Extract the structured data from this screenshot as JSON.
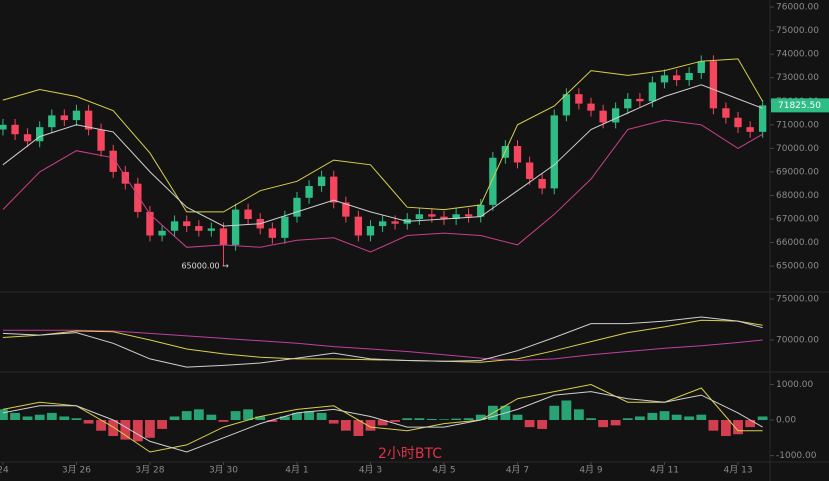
{
  "chart_data": [
    {
      "type": "candlestick",
      "xlim": [
        -0.08,
        20.87
      ],
      "ylim": [
        63900,
        76300
      ],
      "yticks": [
        {
          "value": 65000,
          "label": "65000.00"
        },
        {
          "value": 66000,
          "label": "66000.00"
        },
        {
          "value": 67000,
          "label": "67000.00"
        },
        {
          "value": 68000,
          "label": "68000.00"
        },
        {
          "value": 69000,
          "label": "69000.00"
        },
        {
          "value": 70000,
          "label": "70000.00"
        },
        {
          "value": 71000,
          "label": "71000.00"
        },
        {
          "value": 72000,
          "label": "72000.00"
        },
        {
          "value": 73000,
          "label": "73000.00"
        },
        {
          "value": 74000,
          "label": "74000.00"
        },
        {
          "value": 75000,
          "label": "75000.00"
        },
        {
          "value": 76000,
          "label": "76000.00"
        }
      ],
      "colors": {
        "up": "#2ebd85",
        "down": "#f6465d"
      },
      "x": [
        0,
        0.33,
        0.67,
        1,
        1.33,
        1.67,
        2,
        2.33,
        2.67,
        3,
        3.33,
        3.67,
        4,
        4.33,
        4.67,
        5,
        5.33,
        5.67,
        6,
        6.33,
        6.67,
        7,
        7.33,
        7.67,
        8,
        8.33,
        8.67,
        9,
        9.33,
        9.67,
        10,
        10.33,
        10.67,
        11,
        11.33,
        11.67,
        12,
        12.33,
        12.67,
        13,
        13.33,
        13.67,
        14,
        14.33,
        14.67,
        15,
        15.33,
        15.67,
        16,
        16.33,
        16.67,
        17,
        17.33,
        17.67,
        18,
        18.33,
        18.67,
        19,
        19.33,
        19.67,
        20,
        20.33,
        20.67
      ],
      "ohlc": [
        [
          70800,
          71250,
          70550,
          71000
        ],
        [
          71000,
          71250,
          70350,
          70600
        ],
        [
          70600,
          70850,
          70050,
          70300
        ],
        [
          70300,
          71150,
          70050,
          70900
        ],
        [
          70900,
          71650,
          70650,
          71400
        ],
        [
          71400,
          71650,
          70950,
          71200
        ],
        [
          71200,
          71850,
          70950,
          71600
        ],
        [
          71600,
          71850,
          70550,
          70800
        ],
        [
          70800,
          71050,
          69650,
          69900
        ],
        [
          69900,
          70150,
          68750,
          69000
        ],
        [
          69000,
          69250,
          68250,
          68500
        ],
        [
          68500,
          68750,
          67050,
          67300
        ],
        [
          67300,
          67550,
          66050,
          66300
        ],
        [
          66300,
          66750,
          66050,
          66500
        ],
        [
          66500,
          67150,
          66250,
          66900
        ],
        [
          66900,
          67150,
          66450,
          66700
        ],
        [
          66700,
          66950,
          66250,
          66500
        ],
        [
          66500,
          66850,
          66250,
          66600
        ],
        [
          66600,
          66850,
          65000,
          65900
        ],
        [
          65900,
          67650,
          65650,
          67400
        ],
        [
          67400,
          67650,
          66750,
          67000
        ],
        [
          67000,
          67250,
          66350,
          66600
        ],
        [
          66600,
          66850,
          65950,
          66200
        ],
        [
          66200,
          67350,
          65950,
          67100
        ],
        [
          67100,
          68150,
          66850,
          67900
        ],
        [
          67900,
          68650,
          67650,
          68400
        ],
        [
          68400,
          69050,
          68150,
          68800
        ],
        [
          68800,
          69050,
          67450,
          67700
        ],
        [
          67700,
          67950,
          66850,
          67100
        ],
        [
          67100,
          67350,
          66050,
          66300
        ],
        [
          66300,
          66950,
          66050,
          66700
        ],
        [
          66700,
          67150,
          66450,
          66900
        ],
        [
          66900,
          67150,
          66550,
          66800
        ],
        [
          66800,
          67250,
          66550,
          67000
        ],
        [
          67000,
          67450,
          66750,
          67200
        ],
        [
          67200,
          67450,
          66850,
          67100
        ],
        [
          67100,
          67350,
          66750,
          67000
        ],
        [
          67000,
          67450,
          66750,
          67200
        ],
        [
          67200,
          67450,
          66850,
          67100
        ],
        [
          67100,
          67850,
          66850,
          67600
        ],
        [
          67600,
          69850,
          67350,
          69600
        ],
        [
          69600,
          70350,
          69350,
          70100
        ],
        [
          70100,
          70350,
          69150,
          69400
        ],
        [
          69400,
          69650,
          68450,
          68700
        ],
        [
          68700,
          68950,
          68050,
          68300
        ],
        [
          68300,
          71650,
          68050,
          71400
        ],
        [
          71400,
          72550,
          71150,
          72300
        ],
        [
          72300,
          72550,
          71650,
          71900
        ],
        [
          71900,
          72150,
          71350,
          71600
        ],
        [
          71600,
          71850,
          70850,
          71100
        ],
        [
          71100,
          71950,
          70850,
          71700
        ],
        [
          71700,
          72350,
          71450,
          72100
        ],
        [
          72100,
          72350,
          71750,
          72000
        ],
        [
          72000,
          73050,
          71750,
          72800
        ],
        [
          72800,
          73350,
          72550,
          73100
        ],
        [
          73100,
          73350,
          72650,
          72900
        ],
        [
          72900,
          73450,
          72650,
          73200
        ],
        [
          73200,
          73950,
          72950,
          73700
        ],
        [
          73700,
          73950,
          71450,
          71700
        ],
        [
          71700,
          71950,
          71050,
          71300
        ],
        [
          71300,
          71550,
          70650,
          70900
        ],
        [
          70900,
          71150,
          70450,
          70700
        ],
        [
          70700,
          72050,
          70450,
          71825.5
        ]
      ],
      "series": [
        {
          "color": "#d8d04a",
          "x": [
            0,
            1,
            2,
            3,
            4,
            5,
            6,
            7,
            8,
            9,
            10,
            11,
            12,
            13,
            14,
            15,
            16,
            17,
            18,
            19,
            20,
            20.67
          ],
          "values": [
            72050,
            72500,
            72200,
            71600,
            69800,
            67300,
            67300,
            68200,
            68600,
            69500,
            69300,
            67500,
            67400,
            67600,
            71000,
            71800,
            73300,
            73100,
            73300,
            73700,
            73800,
            72000
          ]
        },
        {
          "color": "#cfcfcf",
          "x": [
            0,
            1,
            2,
            3,
            4,
            5,
            6,
            7,
            8,
            9,
            10,
            11,
            12,
            13,
            14,
            15,
            16,
            17,
            18,
            19,
            20,
            20.67
          ],
          "values": [
            69300,
            70500,
            71000,
            70700,
            69000,
            67500,
            66700,
            66800,
            67300,
            67800,
            67300,
            66900,
            67000,
            67100,
            68200,
            69300,
            70800,
            71500,
            72200,
            72700,
            72100,
            71700
          ]
        },
        {
          "color": "#c8408a",
          "x": [
            0,
            1,
            2,
            3,
            4,
            5,
            6,
            7,
            8,
            9,
            10,
            11,
            12,
            13,
            14,
            15,
            16,
            17,
            18,
            19,
            20,
            20.67
          ],
          "values": [
            67400,
            69000,
            69900,
            69600,
            67200,
            65800,
            65900,
            65800,
            66100,
            66200,
            65600,
            66300,
            66400,
            66300,
            65900,
            67200,
            68700,
            70800,
            71200,
            71000,
            70000,
            70600
          ]
        }
      ],
      "current_price": 71825.5,
      "current_price_label": "71825.50",
      "annotations": [
        {
          "text": "65000.00 →",
          "value": 65000,
          "x": 6
        }
      ]
    },
    {
      "type": "line",
      "xlim": [
        -0.08,
        20.87
      ],
      "ylim": [
        66100,
        75850
      ],
      "yticks": [
        {
          "value": 70000,
          "label": "70000.00"
        },
        {
          "value": 75000,
          "label": "75000.00"
        }
      ],
      "series": [
        {
          "color": "#c040a0",
          "x": [
            0,
            1,
            2,
            3,
            4,
            5,
            6,
            7,
            8,
            9,
            10,
            11,
            12,
            13,
            14,
            15,
            16,
            17,
            18,
            19,
            20,
            20.67
          ],
          "values": [
            71200,
            71200,
            71200,
            71100,
            70800,
            70500,
            70200,
            69900,
            69600,
            69200,
            68900,
            68600,
            68200,
            67800,
            67500,
            67700,
            68200,
            68600,
            69000,
            69300,
            69700,
            70000
          ]
        },
        {
          "color": "#d8d04a",
          "x": [
            0,
            1,
            2,
            3,
            4,
            5,
            6,
            7,
            8,
            9,
            10,
            11,
            12,
            13,
            14,
            15,
            16,
            17,
            18,
            19,
            20,
            20.67
          ],
          "values": [
            70300,
            70600,
            71100,
            71000,
            70000,
            68900,
            68300,
            67900,
            67700,
            67700,
            67600,
            67500,
            67400,
            67300,
            67700,
            68700,
            69800,
            70900,
            71600,
            72400,
            72300,
            71800
          ]
        },
        {
          "color": "#cfcfcf",
          "x": [
            0,
            1,
            2,
            3,
            4,
            5,
            6,
            7,
            8,
            9,
            10,
            11,
            12,
            13,
            14,
            15,
            16,
            17,
            18,
            19,
            20,
            20.67
          ],
          "values": [
            70800,
            70600,
            70900,
            69600,
            67700,
            66700,
            66900,
            67200,
            67800,
            68400,
            67700,
            67500,
            67400,
            67500,
            68700,
            70300,
            72000,
            72000,
            72300,
            72800,
            72300,
            71500
          ]
        }
      ]
    },
    {
      "type": "bar",
      "xlim": [
        -0.08,
        20.87
      ],
      "ylim": [
        -1180,
        1350
      ],
      "yticks": [
        {
          "value": -1000,
          "label": "-1000.00"
        },
        {
          "value": 0,
          "label": "0.00"
        },
        {
          "value": 1000,
          "label": "1000.00"
        }
      ],
      "xticks": [
        {
          "value": 0,
          "label": "24"
        },
        {
          "value": 2,
          "label": "3月 26"
        },
        {
          "value": 4,
          "label": "3月 28"
        },
        {
          "value": 6,
          "label": "3月 30"
        },
        {
          "value": 8,
          "label": "4月 1"
        },
        {
          "value": 10,
          "label": "4月 3"
        },
        {
          "value": 12,
          "label": "4月 5"
        },
        {
          "value": 14,
          "label": "4月 7"
        },
        {
          "value": 16,
          "label": "4月 9"
        },
        {
          "value": 18,
          "label": "4月 11"
        },
        {
          "value": 20,
          "label": "4月 13"
        }
      ],
      "colors": {
        "up": "#2ebd85",
        "down": "#f6465d"
      },
      "x": [
        0,
        0.33,
        0.67,
        1,
        1.33,
        1.67,
        2,
        2.33,
        2.67,
        3,
        3.33,
        3.67,
        4,
        4.33,
        4.67,
        5,
        5.33,
        5.67,
        6,
        6.33,
        6.67,
        7,
        7.33,
        7.67,
        8,
        8.33,
        8.67,
        9,
        9.33,
        9.67,
        10,
        10.33,
        10.67,
        11,
        11.33,
        11.67,
        12,
        12.33,
        12.67,
        13,
        13.33,
        13.67,
        14,
        14.33,
        14.67,
        15,
        15.33,
        15.67,
        16,
        16.33,
        16.67,
        17,
        17.33,
        17.67,
        18,
        18.33,
        18.67,
        19,
        19.33,
        19.67,
        20,
        20.33,
        20.67
      ],
      "values": [
        300,
        200,
        100,
        150,
        200,
        100,
        50,
        -100,
        -300,
        -450,
        -550,
        -600,
        -500,
        -250,
        100,
        250,
        300,
        150,
        -50,
        250,
        300,
        100,
        -50,
        100,
        200,
        250,
        200,
        -100,
        -300,
        -450,
        -300,
        -150,
        -50,
        50,
        50,
        30,
        20,
        40,
        50,
        150,
        400,
        400,
        150,
        -200,
        -250,
        400,
        550,
        300,
        50,
        -200,
        -150,
        50,
        100,
        200,
        250,
        150,
        100,
        150,
        -300,
        -450,
        -400,
        -200,
        100
      ],
      "series": [
        {
          "color": "#d8d04a",
          "x": [
            0,
            1,
            2,
            3,
            4,
            5,
            6,
            7,
            8,
            9,
            10,
            11,
            12,
            13,
            14,
            15,
            16,
            17,
            18,
            19,
            20,
            20.67
          ],
          "values": [
            300,
            500,
            400,
            -200,
            -900,
            -700,
            -200,
            100,
            300,
            400,
            -200,
            -300,
            -100,
            0,
            600,
            800,
            1000,
            500,
            500,
            900,
            -300,
            -300
          ]
        },
        {
          "color": "#cfcfcf",
          "x": [
            0,
            1,
            2,
            3,
            4,
            5,
            6,
            7,
            8,
            9,
            10,
            11,
            12,
            13,
            14,
            15,
            16,
            17,
            18,
            19,
            20,
            20.67
          ],
          "values": [
            200,
            400,
            400,
            0,
            -600,
            -900,
            -500,
            -100,
            200,
            300,
            100,
            -200,
            -200,
            0,
            300,
            700,
            800,
            600,
            500,
            700,
            200,
            -200
          ]
        }
      ],
      "watermark": "2小时BTC"
    }
  ]
}
